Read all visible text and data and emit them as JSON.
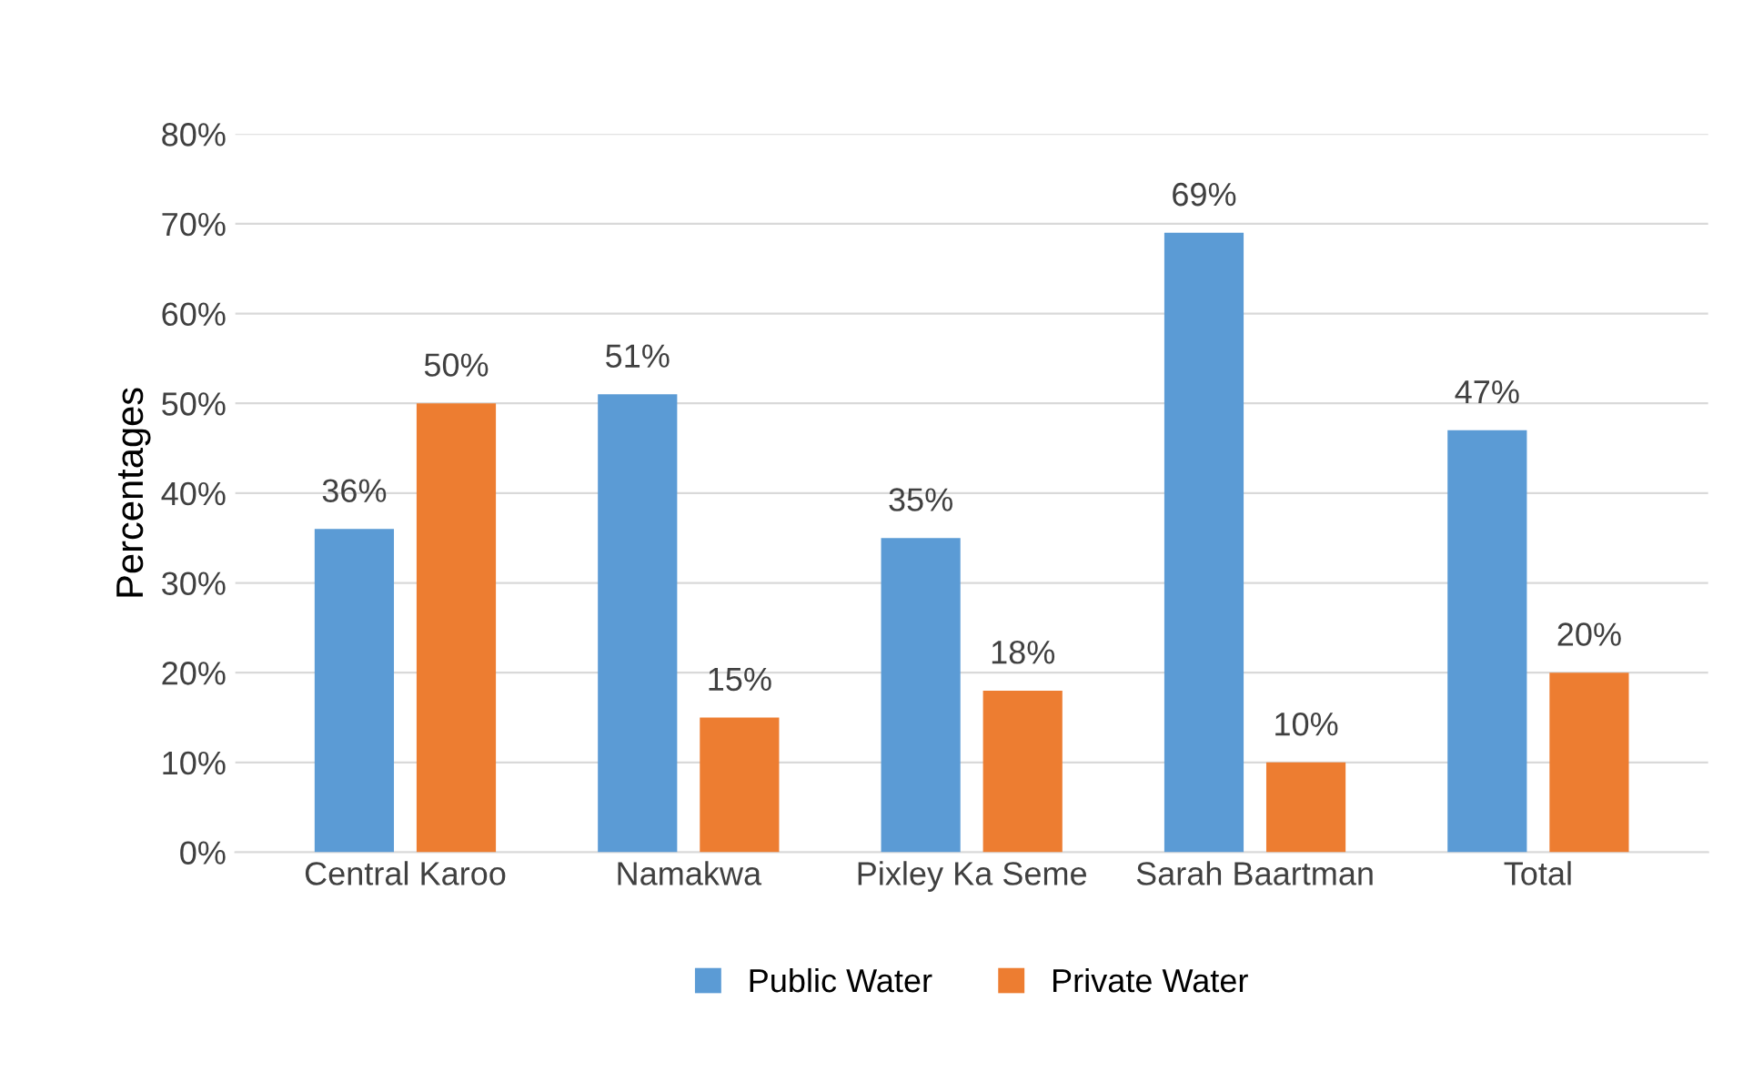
{
  "chart_data": {
    "type": "bar",
    "ylabel": "Percentages",
    "categories": [
      "Central Karoo",
      "Namakwa",
      "Pixley Ka Seme",
      "Sarah Baartman",
      "Total"
    ],
    "series": [
      {
        "name": "Public Water",
        "color": "#5b9bd5",
        "values": [
          36,
          51,
          35,
          69,
          47
        ],
        "value_labels": [
          "36%",
          "51%",
          "35%",
          "69%",
          "47%"
        ]
      },
      {
        "name": "Private Water",
        "color": "#ed7d31",
        "values": [
          50,
          15,
          18,
          10,
          20
        ],
        "value_labels": [
          "50%",
          "15%",
          "18%",
          "10%",
          "20%"
        ]
      }
    ],
    "ylim": [
      0,
      80
    ],
    "yticks": [
      {
        "value": 0,
        "label": "0%"
      },
      {
        "value": 10,
        "label": "10%"
      },
      {
        "value": 20,
        "label": "20%"
      },
      {
        "value": 30,
        "label": "30%"
      },
      {
        "value": 40,
        "label": "40%"
      },
      {
        "value": 50,
        "label": "50%"
      },
      {
        "value": 60,
        "label": "60%"
      },
      {
        "value": 70,
        "label": "70%"
      },
      {
        "value": 80,
        "label": "80%"
      }
    ],
    "grid": "y",
    "legend": "bottom"
  }
}
